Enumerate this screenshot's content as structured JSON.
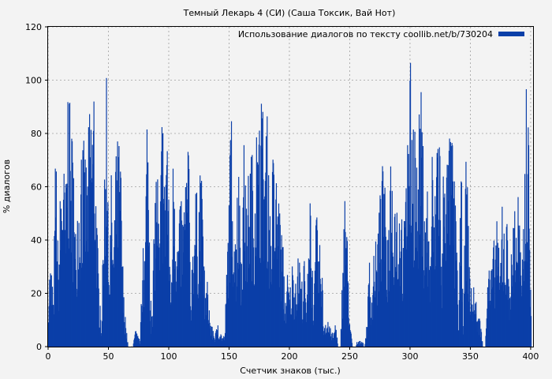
{
  "chart_data": {
    "type": "bar",
    "title": "Темный Лекарь 4 (СИ) (Саша Токсик, Вай Нот)",
    "xlabel": "Счетчик знаков (тыс.)",
    "ylabel": "% диалогов",
    "xlim": [
      0,
      402
    ],
    "ylim": [
      0,
      120
    ],
    "xticks": [
      "0",
      "50",
      "100",
      "150",
      "200",
      "250",
      "300",
      "350",
      "400"
    ],
    "yticks": [
      "0",
      "20",
      "40",
      "60",
      "80",
      "100",
      "120"
    ],
    "grid": true,
    "legend_position": "top-right",
    "colors": {
      "bar": "#0b3fa8",
      "background": "#f3f3f3",
      "grid": "#a0a0a0"
    },
    "series": [
      {
        "name": "Использование диалогов по тексту coollib.net/b/730204",
        "profile_x": [
          0,
          2,
          4,
          6,
          8,
          10,
          12,
          14,
          16,
          18,
          20,
          22,
          24,
          26,
          28,
          30,
          32,
          34,
          36,
          38,
          40,
          42,
          44,
          46,
          48,
          50,
          52,
          54,
          56,
          58,
          60,
          62,
          64,
          66,
          68,
          70,
          72,
          74,
          76,
          78,
          80,
          82,
          84,
          86,
          88,
          90,
          92,
          94,
          96,
          98,
          100,
          102,
          104,
          106,
          108,
          110,
          112,
          114,
          116,
          118,
          120,
          122,
          124,
          126,
          128,
          130,
          132,
          134,
          136,
          138,
          140,
          142,
          144,
          146,
          148,
          150,
          152,
          154,
          156,
          158,
          160,
          162,
          164,
          166,
          168,
          170,
          172,
          174,
          176,
          178,
          180,
          182,
          184,
          186,
          188,
          190,
          192,
          194,
          196,
          198,
          200,
          202,
          204,
          206,
          208,
          210,
          212,
          214,
          216,
          218,
          220,
          222,
          224,
          226,
          228,
          230,
          232,
          234,
          236,
          238,
          240,
          242,
          244,
          246,
          248,
          250,
          252,
          254,
          256,
          258,
          260,
          262,
          264,
          266,
          268,
          270,
          272,
          274,
          276,
          278,
          280,
          282,
          284,
          286,
          288,
          290,
          292,
          294,
          296,
          298,
          300,
          302,
          304,
          306,
          308,
          310,
          312,
          314,
          316,
          318,
          320,
          322,
          324,
          326,
          328,
          330,
          332,
          334,
          336,
          338,
          340,
          342,
          344,
          346,
          348,
          350,
          352,
          354,
          356,
          358,
          360,
          362,
          364,
          366,
          368,
          370,
          372,
          374,
          376,
          378,
          380,
          382,
          384,
          386,
          388,
          390,
          392,
          394,
          396,
          398,
          400
        ],
        "profile_y": [
          26,
          31,
          15,
          77,
          28,
          58,
          73,
          48,
          97,
          80,
          75,
          38,
          57,
          62,
          70,
          71,
          63,
          84,
          90,
          87,
          46,
          19,
          8,
          58,
          96,
          22,
          60,
          35,
          68,
          75,
          63,
          21,
          8,
          0,
          0,
          0,
          6,
          4,
          2,
          35,
          36,
          98,
          22,
          8,
          56,
          70,
          33,
          87,
          60,
          94,
          42,
          24,
          90,
          36,
          43,
          55,
          45,
          60,
          72,
          20,
          47,
          56,
          49,
          75,
          38,
          20,
          24,
          10,
          6,
          4,
          8,
          6,
          4,
          4,
          32,
          64,
          86,
          34,
          50,
          66,
          38,
          72,
          48,
          64,
          72,
          60,
          76,
          70,
          88,
          82,
          73,
          84,
          40,
          68,
          56,
          62,
          44,
          40,
          18,
          26,
          20,
          30,
          28,
          32,
          30,
          24,
          30,
          12,
          60,
          38,
          16,
          48,
          32,
          40,
          8,
          12,
          8,
          6,
          4,
          10,
          0,
          0,
          36,
          56,
          34,
          8,
          0,
          0,
          2,
          2,
          2,
          0,
          10,
          30,
          20,
          40,
          34,
          52,
          56,
          72,
          30,
          50,
          68,
          62,
          60,
          48,
          60,
          36,
          56,
          76,
          98,
          88,
          74,
          60,
          94,
          80,
          36,
          60,
          30,
          70,
          46,
          87,
          90,
          20,
          97,
          66,
          70,
          80,
          64,
          40,
          8,
          68,
          10,
          72,
          46,
          20,
          22,
          18,
          10,
          10,
          0,
          0,
          32,
          24,
          32,
          40,
          46,
          26,
          50,
          38,
          44,
          28,
          34,
          48,
          50,
          60,
          18,
          48,
          92,
          72,
          20
        ]
      }
    ]
  }
}
